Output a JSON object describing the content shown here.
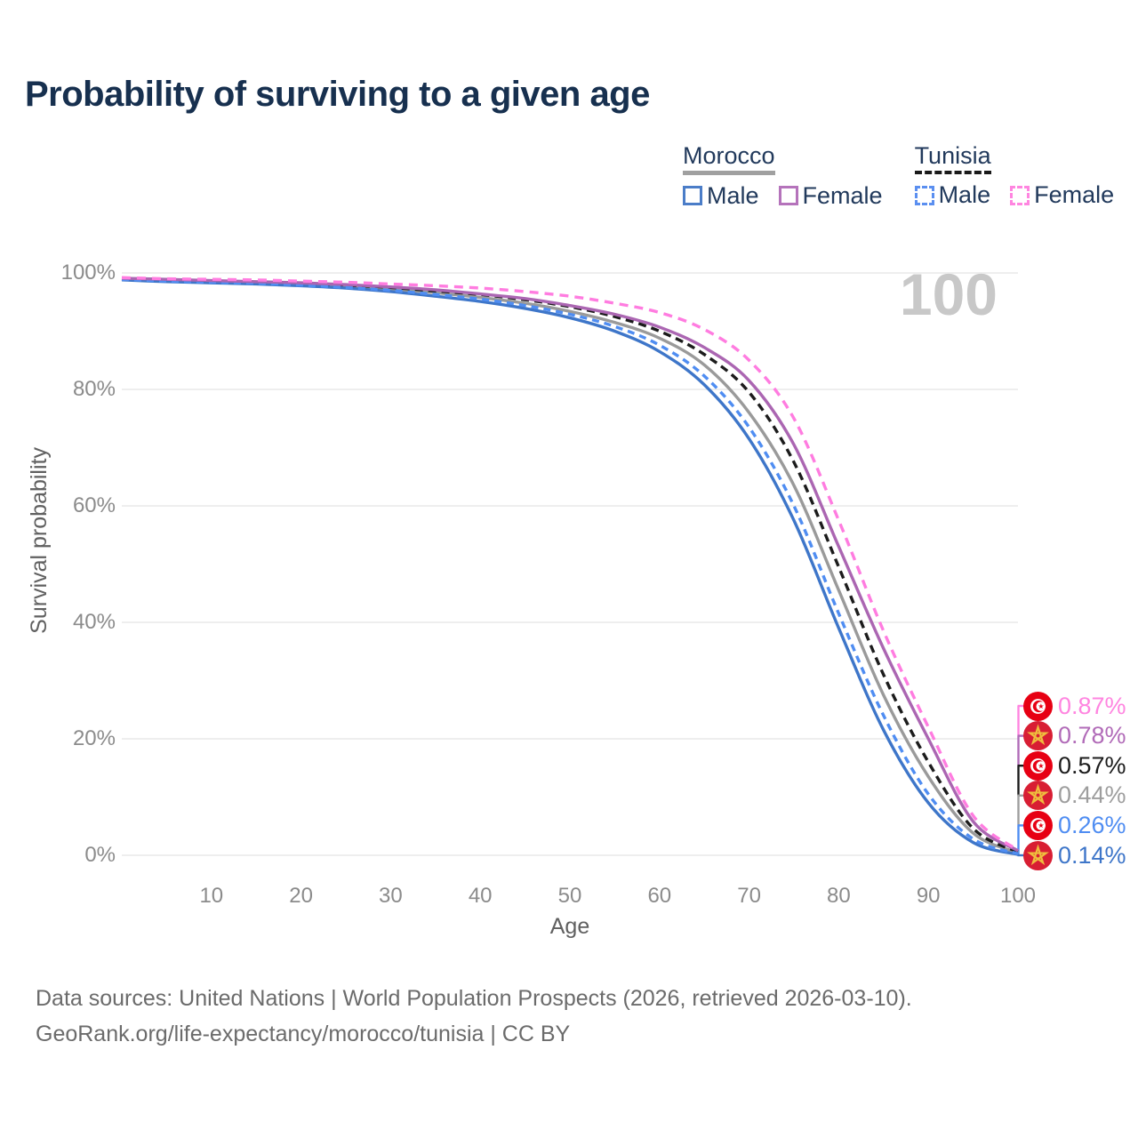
{
  "title": "Probability of surviving to a given age",
  "watermark_age": "100",
  "legend": {
    "groups": [
      {
        "country": "Morocco",
        "line_style": "solid",
        "underline_color": "#a0a0a0",
        "items": [
          {
            "label": "Male",
            "color": "#4b7dc8",
            "dashed": false
          },
          {
            "label": "Female",
            "color": "#b573bb",
            "dashed": false
          }
        ]
      },
      {
        "country": "Tunisia",
        "line_style": "dashed",
        "underline_color": "#1a1a1a",
        "items": [
          {
            "label": "Male",
            "color": "#5b8ff0",
            "dashed": true
          },
          {
            "label": "Female",
            "color": "#ff85e0",
            "dashed": true
          }
        ]
      }
    ]
  },
  "axes": {
    "y_label": "Survival probability",
    "x_label": "Age",
    "y_ticks": [
      {
        "value": 0,
        "label": "0%"
      },
      {
        "value": 20,
        "label": "20%"
      },
      {
        "value": 40,
        "label": "40%"
      },
      {
        "value": 60,
        "label": "60%"
      },
      {
        "value": 80,
        "label": "80%"
      },
      {
        "value": 100,
        "label": "100%"
      }
    ],
    "x_ticks": [
      {
        "value": 10,
        "label": "10"
      },
      {
        "value": 20,
        "label": "20"
      },
      {
        "value": 30,
        "label": "30"
      },
      {
        "value": 40,
        "label": "40"
      },
      {
        "value": 50,
        "label": "50"
      },
      {
        "value": 60,
        "label": "60"
      },
      {
        "value": 70,
        "label": "70"
      },
      {
        "value": 80,
        "label": "80"
      },
      {
        "value": 90,
        "label": "90"
      },
      {
        "value": 100,
        "label": "100"
      }
    ]
  },
  "chart_data": {
    "type": "line",
    "title": "Probability of surviving to a given age",
    "xlabel": "Age",
    "ylabel": "Survival probability",
    "xlim": [
      0,
      100
    ],
    "ylim": [
      0,
      100
    ],
    "grid": true,
    "legend_position": "top-right",
    "x": [
      0,
      5,
      10,
      15,
      20,
      25,
      30,
      35,
      40,
      45,
      50,
      55,
      60,
      65,
      70,
      75,
      80,
      85,
      90,
      95,
      100
    ],
    "series": [
      {
        "name": "Morocco",
        "country": "Morocco",
        "color": "#9a9a9a",
        "dash": null,
        "values": [
          98.9,
          98.7,
          98.5,
          98.3,
          98.0,
          97.7,
          97.2,
          96.6,
          95.8,
          94.8,
          93.4,
          91.5,
          88.8,
          84.2,
          76.0,
          63.5,
          45.5,
          27.5,
          13.5,
          3.8,
          0.44
        ],
        "end_label": "0.44%"
      },
      {
        "name": "Tunisia",
        "country": "Tunisia",
        "color": "#1c1c1c",
        "dash": "9 6",
        "values": [
          99.0,
          98.8,
          98.6,
          98.4,
          98.2,
          97.9,
          97.5,
          96.9,
          96.3,
          95.4,
          94.2,
          92.5,
          90.0,
          86.0,
          79.5,
          67.5,
          49.5,
          31.0,
          16.0,
          4.6,
          0.57
        ],
        "end_label": "0.57%"
      },
      {
        "name": "Morocco Male",
        "country": "Morocco",
        "sex": "Male",
        "color": "#3e76c9",
        "dash": null,
        "values": [
          98.8,
          98.5,
          98.3,
          98.1,
          97.8,
          97.4,
          96.8,
          96.0,
          95.1,
          93.9,
          92.3,
          90.0,
          86.5,
          80.8,
          71.5,
          57.5,
          39.0,
          21.5,
          9.0,
          2.2,
          0.14
        ],
        "end_label": "0.14%"
      },
      {
        "name": "Tunisia Male",
        "country": "Tunisia",
        "sex": "Male",
        "color": "#4f8df2",
        "dash": "8 6",
        "values": [
          98.9,
          98.6,
          98.4,
          98.2,
          97.9,
          97.5,
          97.0,
          96.3,
          95.5,
          94.4,
          92.9,
          90.8,
          87.6,
          82.3,
          73.5,
          60.0,
          41.5,
          24.0,
          10.5,
          2.8,
          0.26
        ],
        "end_label": "0.26%"
      },
      {
        "name": "Morocco Female",
        "country": "Morocco",
        "sex": "Female",
        "color": "#ab66b2",
        "dash": null,
        "values": [
          99.1,
          98.9,
          98.7,
          98.5,
          98.3,
          98.0,
          97.6,
          97.1,
          96.4,
          95.6,
          94.4,
          92.9,
          90.7,
          87.2,
          81.5,
          70.5,
          53.0,
          35.5,
          20.0,
          5.8,
          0.78
        ],
        "end_label": "0.78%"
      },
      {
        "name": "Tunisia Female",
        "country": "Tunisia",
        "sex": "Female",
        "color": "#ff7ce0",
        "dash": "10 7",
        "values": [
          99.2,
          99.0,
          98.9,
          98.8,
          98.6,
          98.4,
          98.1,
          97.8,
          97.4,
          96.8,
          96.0,
          94.8,
          93.2,
          90.3,
          85.0,
          75.0,
          57.5,
          38.5,
          22.0,
          6.8,
          0.87
        ],
        "end_label": "0.87%"
      }
    ]
  },
  "end_labels": [
    {
      "text": "0.87%",
      "color": "#ff85e0",
      "flag": "tunisia"
    },
    {
      "text": "0.78%",
      "color": "#b16bb8",
      "flag": "morocco"
    },
    {
      "text": "0.57%",
      "color": "#1c1c1c",
      "flag": "tunisia"
    },
    {
      "text": "0.44%",
      "color": "#9e9e9e",
      "flag": "morocco"
    },
    {
      "text": "0.26%",
      "color": "#4f8df2",
      "flag": "tunisia"
    },
    {
      "text": "0.14%",
      "color": "#3e76c9",
      "flag": "morocco"
    }
  ],
  "footer": {
    "line1": "Data sources: United Nations | World Population Prospects (2026, retrieved 2026-03-10).",
    "line2": "GeoRank.org/life-expectancy/morocco/tunisia | CC BY"
  },
  "colors": {
    "gridline": "#e4e4e4",
    "tunisia_flag_red": "#e70013",
    "morocco_flag_red": "#d81e33",
    "morocco_star_gold": "#efbd3e",
    "title_navy": "#17304f"
  }
}
